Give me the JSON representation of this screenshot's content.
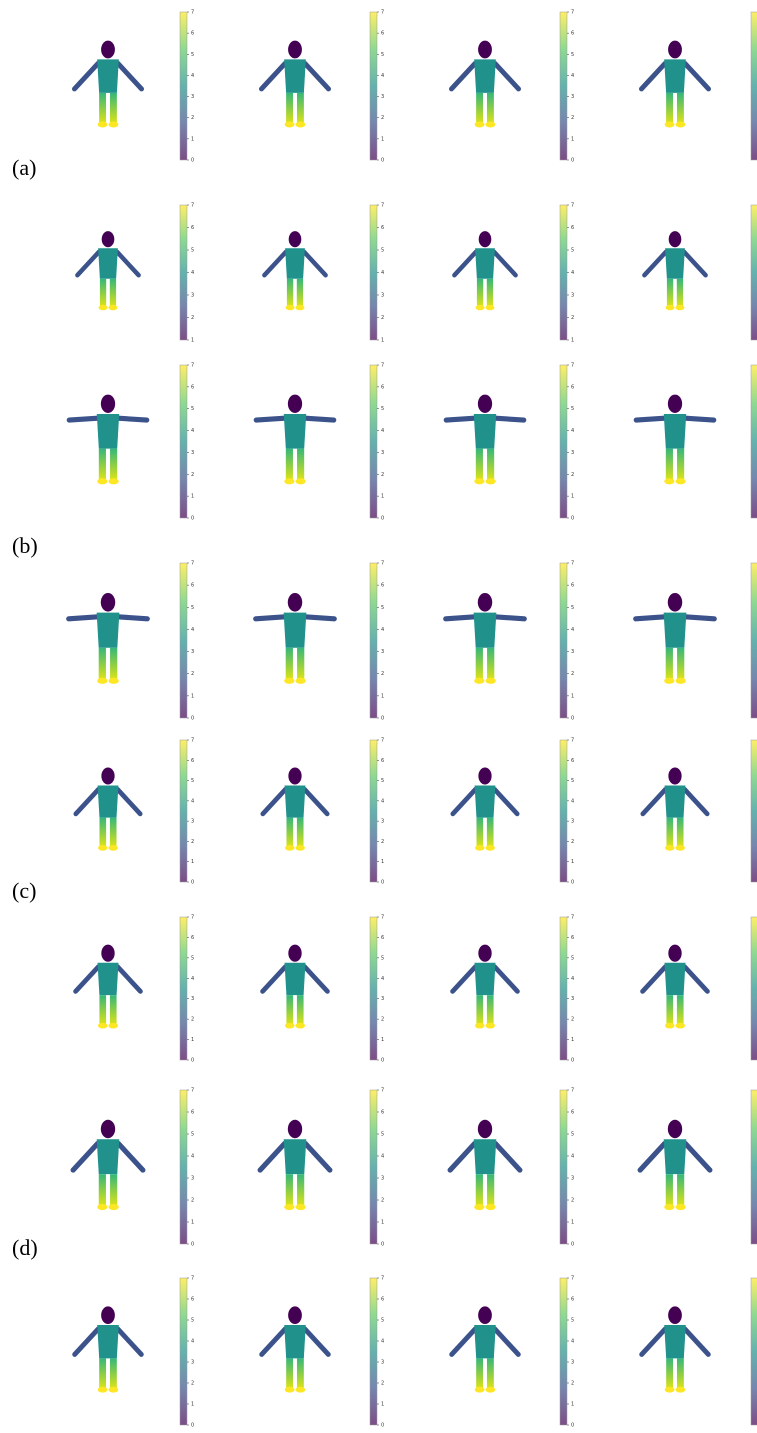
{
  "panels": [
    {
      "label": "(a)",
      "rows": [
        {
          "ticks": [
            0,
            1,
            2,
            3,
            4,
            5,
            6,
            7
          ]
        },
        {
          "ticks": [
            1,
            2,
            3,
            4,
            5,
            6,
            7
          ]
        }
      ]
    },
    {
      "label": "(b)",
      "rows": [
        {
          "ticks": [
            0,
            1,
            2,
            3,
            4,
            5,
            6,
            7
          ]
        },
        {
          "ticks": [
            0,
            1,
            2,
            3,
            4,
            5,
            6,
            7
          ]
        }
      ]
    },
    {
      "label": "(c)",
      "rows": [
        {
          "ticks": [
            0,
            1,
            2,
            3,
            4,
            5,
            6,
            7
          ]
        },
        {
          "ticks": [
            0,
            1,
            2,
            3,
            4,
            5,
            6,
            7
          ]
        }
      ]
    },
    {
      "label": "(d)",
      "rows": [
        {
          "ticks": [
            0,
            1,
            2,
            3,
            4,
            5,
            6,
            7
          ]
        },
        {
          "ticks": [
            0,
            1,
            2,
            3,
            4,
            5,
            6,
            7
          ]
        }
      ]
    }
  ]
}
